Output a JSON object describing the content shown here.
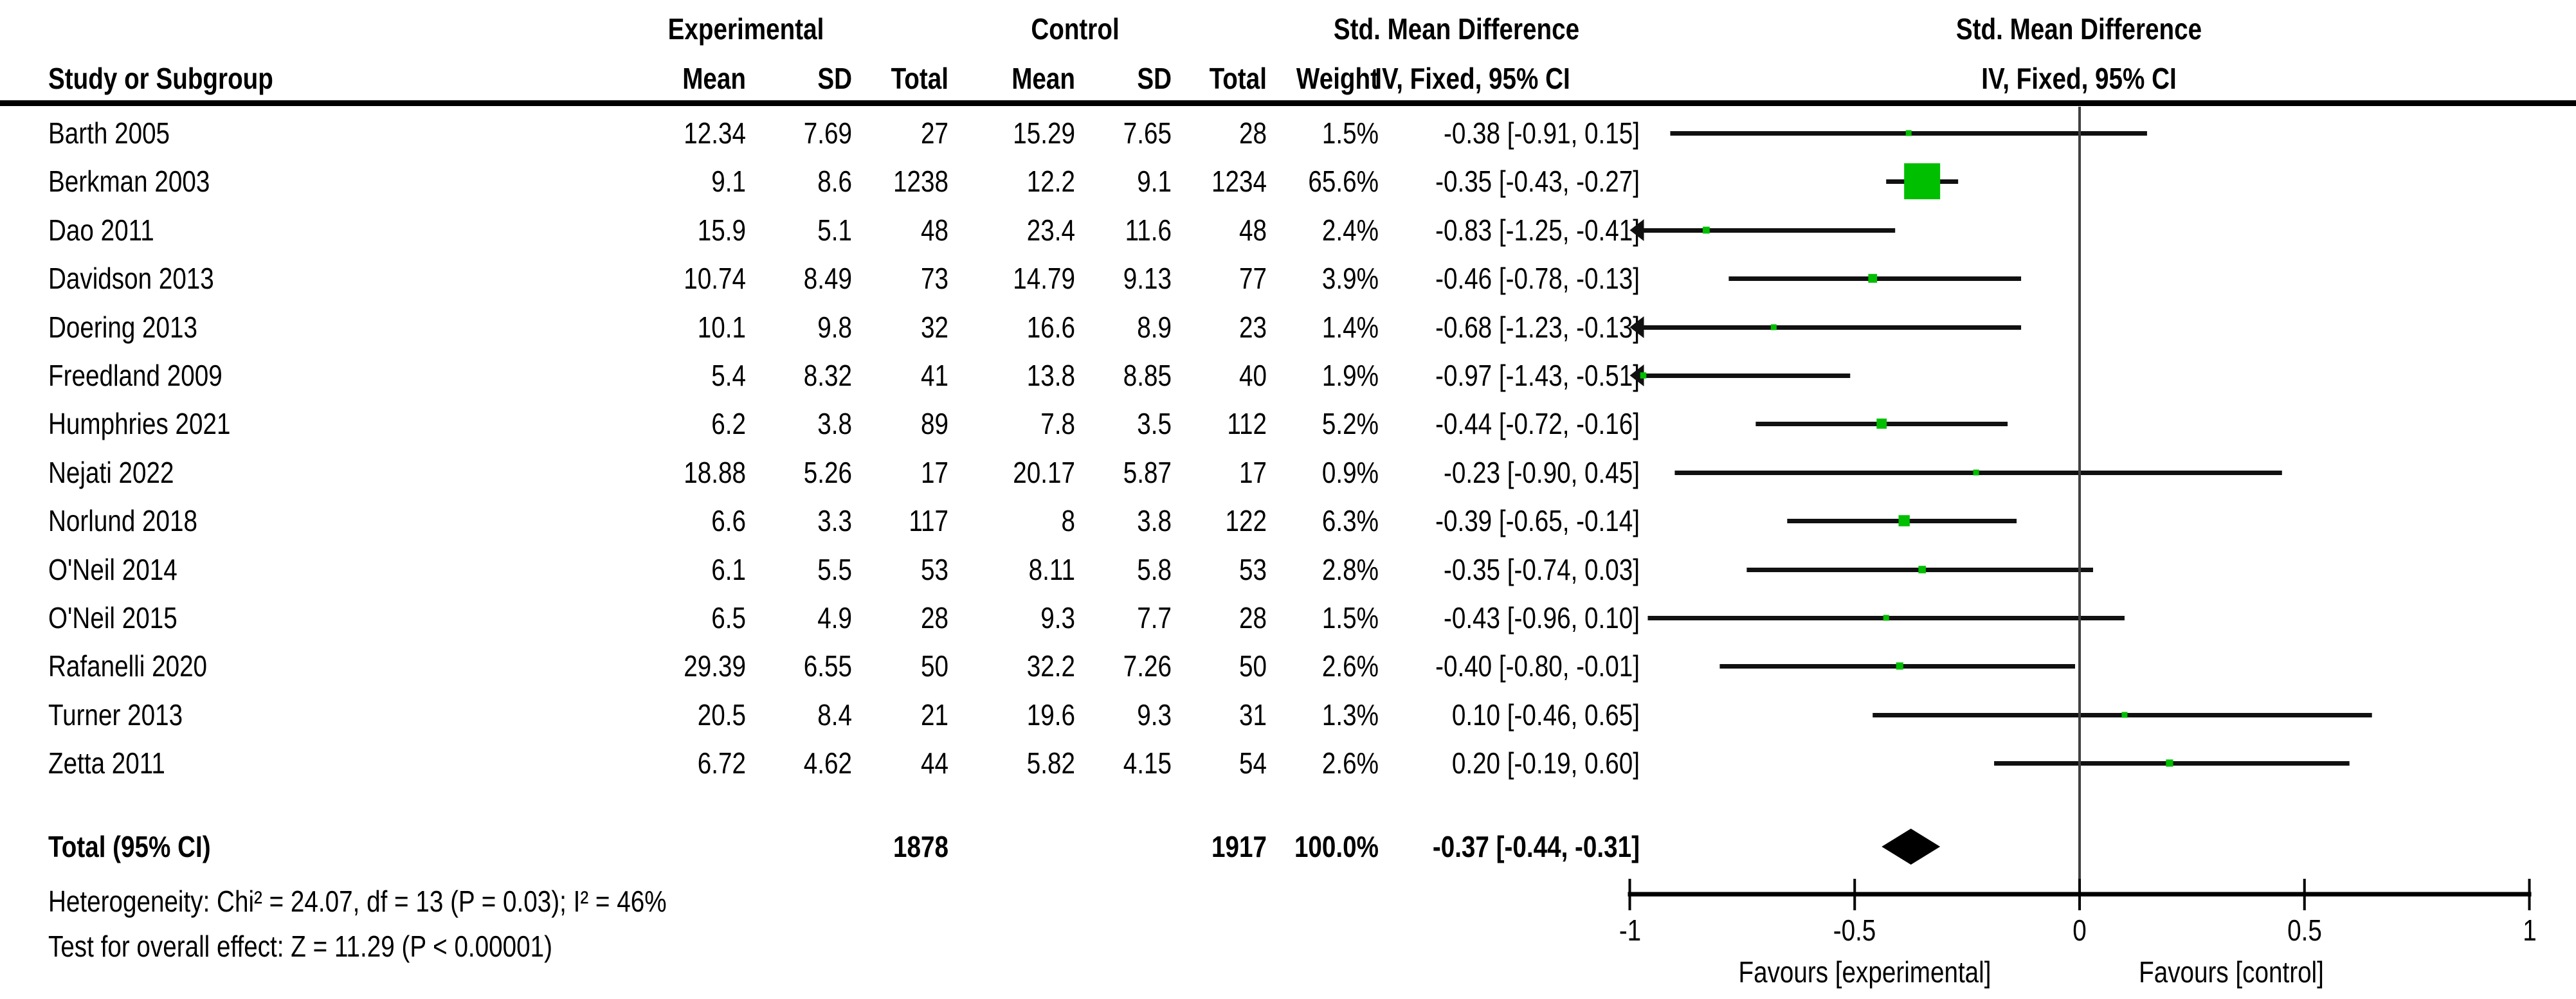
{
  "header": {
    "group_experimental": "Experimental",
    "group_control": "Control",
    "smd_text_col_title": "Std. Mean Difference",
    "smd_plot_col_title": "Std. Mean Difference",
    "col_study": "Study or Subgroup",
    "col_exp_mean": "Mean",
    "col_exp_sd": "SD",
    "col_exp_total": "Total",
    "col_ctrl_mean": "Mean",
    "col_ctrl_sd": "SD",
    "col_ctrl_total": "Total",
    "col_weight": "Weight",
    "method_text_col": "IV, Fixed, 95% CI",
    "method_plot_col": "IV, Fixed, 95% CI"
  },
  "footer": {
    "heterogeneity": "Heterogeneity: Chi² = 24.07, df = 13 (P = 0.03); I² = 46%",
    "overall_effect": "Test for overall effect: Z = 11.29 (P < 0.00001)"
  },
  "axis_labels": {
    "favours_left": "Favours [experimental]",
    "favours_right": "Favours [control]"
  },
  "colors": {
    "marker_green": "#00BE00",
    "ci_line": "#111111",
    "diamond": "#000000",
    "zero_line": "#404040",
    "axis": "#000000"
  },
  "chart_data": {
    "type": "scatter",
    "subtype": "forest-plot-meta-analysis",
    "title": "Std. Mean Difference, IV, Fixed, 95% CI",
    "xlim": [
      -1,
      1
    ],
    "tick_values": [
      -1,
      -0.5,
      0,
      0.5,
      1
    ],
    "tick_labels": [
      "-1",
      "-0.5",
      "0",
      "0.5",
      "1"
    ],
    "studies": [
      {
        "name": "Barth 2005",
        "exp_mean": "12.34",
        "exp_sd": "7.69",
        "exp_total": "27",
        "ctrl_mean": "15.29",
        "ctrl_sd": "7.65",
        "ctrl_total": "28",
        "weight": "1.5%",
        "weight_pct": 1.5,
        "smd": -0.38,
        "ci_low": -0.91,
        "ci_high": 0.15,
        "ci_text": "-0.38 [-0.91, 0.15]"
      },
      {
        "name": "Berkman 2003",
        "exp_mean": "9.1",
        "exp_sd": "8.6",
        "exp_total": "1238",
        "ctrl_mean": "12.2",
        "ctrl_sd": "9.1",
        "ctrl_total": "1234",
        "weight": "65.6%",
        "weight_pct": 65.6,
        "smd": -0.35,
        "ci_low": -0.43,
        "ci_high": -0.27,
        "ci_text": "-0.35 [-0.43, -0.27]"
      },
      {
        "name": "Dao 2011",
        "exp_mean": "15.9",
        "exp_sd": "5.1",
        "exp_total": "48",
        "ctrl_mean": "23.4",
        "ctrl_sd": "11.6",
        "ctrl_total": "48",
        "weight": "2.4%",
        "weight_pct": 2.4,
        "smd": -0.83,
        "ci_low": -1.25,
        "ci_high": -0.41,
        "ci_text": "-0.83 [-1.25, -0.41]"
      },
      {
        "name": "Davidson 2013",
        "exp_mean": "10.74",
        "exp_sd": "8.49",
        "exp_total": "73",
        "ctrl_mean": "14.79",
        "ctrl_sd": "9.13",
        "ctrl_total": "77",
        "weight": "3.9%",
        "weight_pct": 3.9,
        "smd": -0.46,
        "ci_low": -0.78,
        "ci_high": -0.13,
        "ci_text": "-0.46 [-0.78, -0.13]"
      },
      {
        "name": "Doering 2013",
        "exp_mean": "10.1",
        "exp_sd": "9.8",
        "exp_total": "32",
        "ctrl_mean": "16.6",
        "ctrl_sd": "8.9",
        "ctrl_total": "23",
        "weight": "1.4%",
        "weight_pct": 1.4,
        "smd": -0.68,
        "ci_low": -1.23,
        "ci_high": -0.13,
        "ci_text": "-0.68 [-1.23, -0.13]"
      },
      {
        "name": "Freedland 2009",
        "exp_mean": "5.4",
        "exp_sd": "8.32",
        "exp_total": "41",
        "ctrl_mean": "13.8",
        "ctrl_sd": "8.85",
        "ctrl_total": "40",
        "weight": "1.9%",
        "weight_pct": 1.9,
        "smd": -0.97,
        "ci_low": -1.43,
        "ci_high": -0.51,
        "ci_text": "-0.97 [-1.43, -0.51]"
      },
      {
        "name": "Humphries 2021",
        "exp_mean": "6.2",
        "exp_sd": "3.8",
        "exp_total": "89",
        "ctrl_mean": "7.8",
        "ctrl_sd": "3.5",
        "ctrl_total": "112",
        "weight": "5.2%",
        "weight_pct": 5.2,
        "smd": -0.44,
        "ci_low": -0.72,
        "ci_high": -0.16,
        "ci_text": "-0.44 [-0.72, -0.16]"
      },
      {
        "name": "Nejati 2022",
        "exp_mean": "18.88",
        "exp_sd": "5.26",
        "exp_total": "17",
        "ctrl_mean": "20.17",
        "ctrl_sd": "5.87",
        "ctrl_total": "17",
        "weight": "0.9%",
        "weight_pct": 0.9,
        "smd": -0.23,
        "ci_low": -0.9,
        "ci_high": 0.45,
        "ci_text": "-0.23 [-0.90, 0.45]"
      },
      {
        "name": "Norlund 2018",
        "exp_mean": "6.6",
        "exp_sd": "3.3",
        "exp_total": "117",
        "ctrl_mean": "8",
        "ctrl_sd": "3.8",
        "ctrl_total": "122",
        "weight": "6.3%",
        "weight_pct": 6.3,
        "smd": -0.39,
        "ci_low": -0.65,
        "ci_high": -0.14,
        "ci_text": "-0.39 [-0.65, -0.14]"
      },
      {
        "name": "O'Neil 2014",
        "exp_mean": "6.1",
        "exp_sd": "5.5",
        "exp_total": "53",
        "ctrl_mean": "8.11",
        "ctrl_sd": "5.8",
        "ctrl_total": "53",
        "weight": "2.8%",
        "weight_pct": 2.8,
        "smd": -0.35,
        "ci_low": -0.74,
        "ci_high": 0.03,
        "ci_text": "-0.35 [-0.74, 0.03]"
      },
      {
        "name": "O'Neil 2015",
        "exp_mean": "6.5",
        "exp_sd": "4.9",
        "exp_total": "28",
        "ctrl_mean": "9.3",
        "ctrl_sd": "7.7",
        "ctrl_total": "28",
        "weight": "1.5%",
        "weight_pct": 1.5,
        "smd": -0.43,
        "ci_low": -0.96,
        "ci_high": 0.1,
        "ci_text": "-0.43 [-0.96, 0.10]"
      },
      {
        "name": "Rafanelli 2020",
        "exp_mean": "29.39",
        "exp_sd": "6.55",
        "exp_total": "50",
        "ctrl_mean": "32.2",
        "ctrl_sd": "7.26",
        "ctrl_total": "50",
        "weight": "2.6%",
        "weight_pct": 2.6,
        "smd": -0.4,
        "ci_low": -0.8,
        "ci_high": -0.01,
        "ci_text": "-0.40 [-0.80, -0.01]"
      },
      {
        "name": "Turner 2013",
        "exp_mean": "20.5",
        "exp_sd": "8.4",
        "exp_total": "21",
        "ctrl_mean": "19.6",
        "ctrl_sd": "9.3",
        "ctrl_total": "31",
        "weight": "1.3%",
        "weight_pct": 1.3,
        "smd": 0.1,
        "ci_low": -0.46,
        "ci_high": 0.65,
        "ci_text": "0.10 [-0.46, 0.65]"
      },
      {
        "name": "Zetta 2011",
        "exp_mean": "6.72",
        "exp_sd": "4.62",
        "exp_total": "44",
        "ctrl_mean": "5.82",
        "ctrl_sd": "4.15",
        "ctrl_total": "54",
        "weight": "2.6%",
        "weight_pct": 2.6,
        "smd": 0.2,
        "ci_low": -0.19,
        "ci_high": 0.6,
        "ci_text": "0.20 [-0.19, 0.60]"
      }
    ],
    "total": {
      "label": "Total (95% CI)",
      "exp_total": "1878",
      "ctrl_total": "1917",
      "weight": "100.0%",
      "weight_pct": 100.0,
      "smd": -0.37,
      "ci_low": -0.44,
      "ci_high": -0.31,
      "ci_text": "-0.37 [-0.44, -0.31]"
    },
    "heterogeneity": "Heterogeneity: Chi² = 24.07, df = 13 (P = 0.03); I² = 46%",
    "overall_effect": "Test for overall effect: Z = 11.29 (P < 0.00001)"
  }
}
